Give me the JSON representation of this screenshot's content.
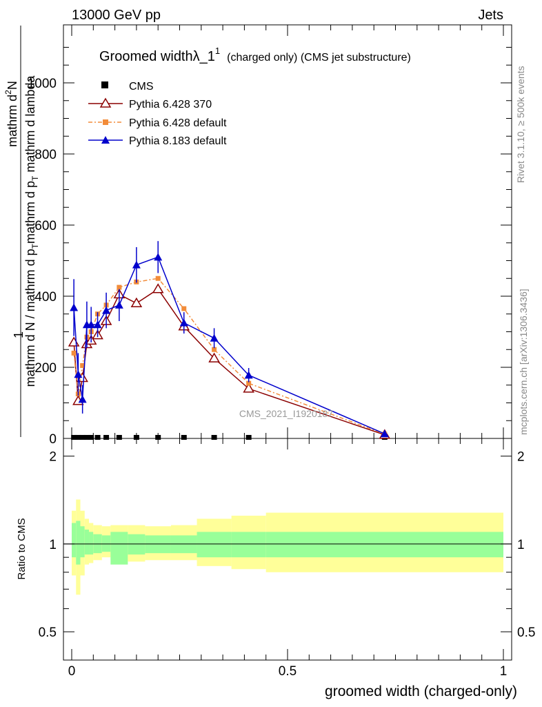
{
  "header": {
    "left": "13000 GeV pp",
    "right": "Jets"
  },
  "side_labels": {
    "rivet": "Rivet 3.1.10, ≥ 500k events",
    "mcplots": "mcplots.cern.ch [arXiv:1306.3436]"
  },
  "watermark": "CMS_2021_I1920187",
  "chart_data": {
    "type": "line",
    "title": "Groomed widthλ_1",
    "title_sup": "1",
    "title_sub": "(charged only) (CMS jet substructure)",
    "ylabel_numer_1": "1",
    "ylabel_numer_2": "mathrm d",
    "ylabel_numer_sup": "2",
    "ylabel_numer_3": "N",
    "ylabel_denom": "mathrm d N / mathrm d p",
    "ylabel_denom_sub": "T",
    "ylabel_denom_2": "mathrm d p",
    "ylabel_denom_sub2": "T",
    "ylabel_denom_3": " mathrm d lambda",
    "xlabel": "groomed width (charged-only)",
    "ratio_ylabel": "Ratio to CMS",
    "xlim": [
      0,
      1
    ],
    "ylim": [
      0,
      1200
    ],
    "ratio_ylim": [
      0.4,
      2.3
    ],
    "x_ticks": [
      "0",
      "0.5",
      "1"
    ],
    "y_ticks": [
      "0",
      "200",
      "400",
      "600",
      "800",
      "1000"
    ],
    "ratio_ticks": [
      "0.5",
      "1",
      "2"
    ],
    "legend": [
      "CMS",
      "Pythia 6.428 370",
      "Pythia 6.428 default",
      "Pythia 8.183 default"
    ],
    "series": [
      {
        "name": "CMS",
        "color": "#000000",
        "x": [
          0.005,
          0.015,
          0.025,
          0.035,
          0.045,
          0.06,
          0.08,
          0.11,
          0.15,
          0.2,
          0.26,
          0.33,
          0.41,
          0.725
        ],
        "values": [
          2,
          2,
          2,
          2,
          2,
          2,
          2,
          2,
          2,
          2,
          2,
          2,
          2,
          2
        ]
      },
      {
        "name": "Pythia 6.428 370",
        "color": "#8b0000",
        "x": [
          0.005,
          0.015,
          0.025,
          0.035,
          0.045,
          0.06,
          0.08,
          0.11,
          0.15,
          0.2,
          0.26,
          0.33,
          0.41,
          0.725
        ],
        "values": [
          270,
          105,
          170,
          265,
          275,
          290,
          330,
          405,
          380,
          420,
          315,
          225,
          140,
          10
        ]
      },
      {
        "name": "Pythia 6.428 default",
        "color": "#f28c3a",
        "x": [
          0.005,
          0.015,
          0.025,
          0.035,
          0.045,
          0.06,
          0.08,
          0.11,
          0.15,
          0.2,
          0.26,
          0.33,
          0.41,
          0.725
        ],
        "values": [
          240,
          125,
          205,
          285,
          300,
          350,
          375,
          425,
          440,
          450,
          365,
          250,
          155,
          12
        ]
      },
      {
        "name": "Pythia 8.183 default",
        "color": "#0000cc",
        "x": [
          0.005,
          0.015,
          0.025,
          0.035,
          0.045,
          0.06,
          0.08,
          0.11,
          0.15,
          0.2,
          0.26,
          0.33,
          0.41,
          0.725
        ],
        "values": [
          368,
          180,
          110,
          320,
          320,
          320,
          360,
          375,
          488,
          510,
          325,
          282,
          178,
          13
        ],
        "errors": [
          80,
          60,
          40,
          65,
          50,
          35,
          50,
          45,
          50,
          45,
          30,
          28,
          20,
          5
        ]
      }
    ],
    "ratio_bands": {
      "edges": [
        0,
        0.01,
        0.02,
        0.03,
        0.04,
        0.05,
        0.07,
        0.09,
        0.13,
        0.17,
        0.23,
        0.29,
        0.37,
        0.45,
        1.0
      ],
      "inner": [
        [
          0.9,
          1.18
        ],
        [
          0.85,
          1.2
        ],
        [
          0.9,
          1.15
        ],
        [
          0.92,
          1.12
        ],
        [
          0.92,
          1.1
        ],
        [
          0.93,
          1.08
        ],
        [
          0.94,
          1.07
        ],
        [
          0.85,
          1.1
        ],
        [
          0.92,
          1.08
        ],
        [
          0.93,
          1.07
        ],
        [
          0.93,
          1.07
        ],
        [
          0.9,
          1.1
        ],
        [
          0.9,
          1.1
        ],
        [
          0.9,
          1.1
        ]
      ],
      "outer": [
        [
          0.78,
          1.3
        ],
        [
          0.67,
          1.42
        ],
        [
          0.78,
          1.3
        ],
        [
          0.85,
          1.22
        ],
        [
          0.86,
          1.18
        ],
        [
          0.88,
          1.16
        ],
        [
          0.9,
          1.15
        ],
        [
          0.88,
          1.16
        ],
        [
          0.87,
          1.16
        ],
        [
          0.88,
          1.15
        ],
        [
          0.88,
          1.16
        ],
        [
          0.84,
          1.22
        ],
        [
          0.82,
          1.25
        ],
        [
          0.8,
          1.28
        ]
      ]
    },
    "colors": {
      "band_inner": "#99ff99",
      "band_outer": "#ffff99",
      "ratio_line": "#000000"
    }
  }
}
